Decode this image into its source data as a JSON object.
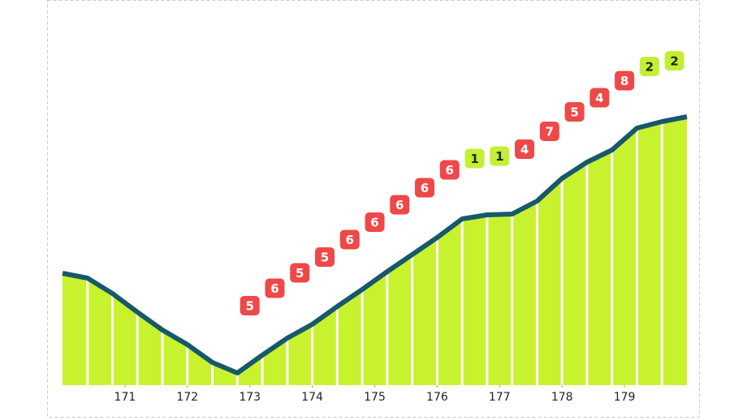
{
  "chart_data": {
    "type": "area",
    "x": [
      170,
      170.4,
      170.8,
      171.2,
      171.6,
      172,
      172.4,
      172.8,
      173.2,
      173.6,
      174,
      174.4,
      174.8,
      175.2,
      175.6,
      176,
      176.4,
      176.8,
      177.2,
      177.6,
      178,
      178.4,
      178.8,
      179.2,
      179.6,
      180
    ],
    "values": [
      138,
      132,
      113,
      90,
      68,
      50,
      28,
      15,
      37,
      58,
      75,
      97,
      118,
      140,
      161,
      182,
      205,
      210,
      211,
      227,
      255,
      275,
      290,
      317,
      325,
      331
    ],
    "gradients": [
      null,
      null,
      null,
      null,
      null,
      null,
      null,
      5,
      6,
      5,
      5,
      6,
      6,
      6,
      6,
      6,
      1,
      1,
      4,
      7,
      5,
      4,
      8,
      2,
      2
    ],
    "gradient_colors": [
      null,
      null,
      null,
      null,
      null,
      null,
      null,
      "#ef4848",
      "#ef4848",
      "#ef4848",
      "#ef4848",
      "#ef4848",
      "#ef4848",
      "#ef4848",
      "#ef4848",
      "#ef4848",
      "#c4ee36",
      "#c4ee36",
      "#ef4848",
      "#ef4848",
      "#ef4848",
      "#ef4848",
      "#ef4848",
      "#c4ee36",
      "#c4ee36"
    ],
    "fill_color": "#c8f22e",
    "line_color": "#17596a",
    "xlim": [
      170,
      180
    ],
    "xticks": [
      171,
      172,
      173,
      174,
      175,
      176,
      177,
      178,
      179
    ],
    "ylim": [
      0,
      400
    ]
  }
}
